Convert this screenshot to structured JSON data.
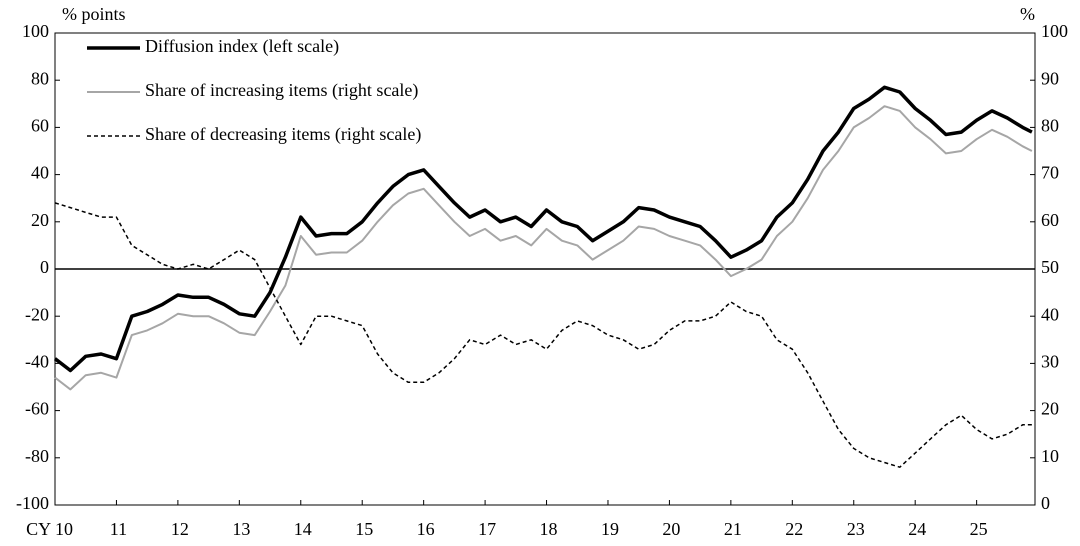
{
  "chart_data": {
    "type": "line",
    "y_axis_label": "% points",
    "y2_axis_label": "%",
    "x": [
      10,
      10.25,
      10.5,
      10.75,
      11,
      11.25,
      11.5,
      11.75,
      12,
      12.25,
      12.5,
      12.75,
      13,
      13.25,
      13.5,
      13.75,
      14,
      14.25,
      14.5,
      14.75,
      15,
      15.25,
      15.5,
      15.75,
      16,
      16.25,
      16.5,
      16.75,
      17,
      17.25,
      17.5,
      17.75,
      18,
      18.25,
      18.5,
      18.75,
      19,
      19.25,
      19.5,
      19.75,
      20,
      20.25,
      20.5,
      20.75,
      21,
      21.25,
      21.5,
      21.75,
      22,
      22.25,
      22.5,
      22.75,
      23,
      23.25,
      23.5,
      23.75,
      24,
      24.25,
      24.5,
      24.75,
      25,
      25.25,
      25.5,
      25.75,
      25.9
    ],
    "xlim": [
      10,
      25.95
    ],
    "xticks": [
      {
        "value": 10,
        "label": "CY 10"
      },
      11,
      12,
      13,
      14,
      15,
      16,
      17,
      18,
      19,
      20,
      21,
      22,
      23,
      24,
      25
    ],
    "ylim": [
      -100,
      100
    ],
    "yticks": [
      -100,
      -80,
      -60,
      -40,
      -20,
      0,
      20,
      40,
      60,
      80,
      100
    ],
    "y2lim": [
      0,
      100
    ],
    "y2ticks": [
      0,
      10,
      20,
      30,
      40,
      50,
      60,
      70,
      80,
      90,
      100
    ],
    "legend": "upper left",
    "series": [
      {
        "name": "Diffusion index (left scale)",
        "color": "#000000",
        "width": 3.5,
        "dashed": false,
        "values": [
          -38,
          -43,
          -37,
          -36,
          -38,
          -20,
          -18,
          -15,
          -11,
          -12,
          -12,
          -15,
          -19,
          -20,
          -10,
          5,
          22,
          14,
          15,
          15,
          20,
          28,
          35,
          40,
          42,
          35,
          28,
          22,
          25,
          20,
          22,
          18,
          25,
          20,
          18,
          12,
          16,
          20,
          26,
          25,
          22,
          20,
          18,
          12,
          5,
          8,
          12,
          22,
          28,
          38,
          50,
          58,
          68,
          72,
          77,
          75,
          68,
          63,
          57,
          58,
          63,
          67,
          64,
          60,
          58
        ]
      },
      {
        "name": "Share of increasing items (right scale)",
        "color": "#a6a6a6",
        "width": 2,
        "dashed": false,
        "axis": "y2",
        "values": [
          27,
          24.5,
          27.5,
          28,
          27,
          36,
          37,
          38.5,
          40.5,
          40,
          40,
          38.5,
          36.5,
          36,
          41,
          46.5,
          57,
          53,
          53.5,
          53.5,
          56,
          60,
          63.5,
          66,
          67,
          63.5,
          60,
          57,
          58.5,
          56,
          57,
          55,
          58.5,
          56,
          55,
          52,
          54,
          56,
          59,
          58.5,
          57,
          56,
          55,
          52,
          48.5,
          50,
          52,
          57,
          60,
          65,
          71,
          75,
          80,
          82,
          84.5,
          83.5,
          80,
          77.5,
          74.5,
          75,
          77.5,
          79.5,
          78,
          76,
          75
        ]
      },
      {
        "name": "Share of decreasing items (right scale)",
        "color": "#000000",
        "width": 1.5,
        "dashed": true,
        "axis": "y2",
        "values": [
          64,
          63,
          62,
          61,
          61,
          55,
          53,
          51,
          50,
          51,
          50,
          52,
          54,
          52,
          46,
          40,
          34,
          40,
          40,
          39,
          38,
          32,
          28,
          26,
          26,
          28,
          31,
          35,
          34,
          36,
          34,
          35,
          33,
          37,
          39,
          38,
          36,
          35,
          33,
          34,
          37,
          39,
          39,
          40,
          43,
          41,
          40,
          35,
          33,
          28,
          22,
          16,
          12,
          10,
          9,
          8,
          11,
          14,
          17,
          19,
          16,
          14,
          15,
          17,
          17
        ]
      }
    ]
  }
}
